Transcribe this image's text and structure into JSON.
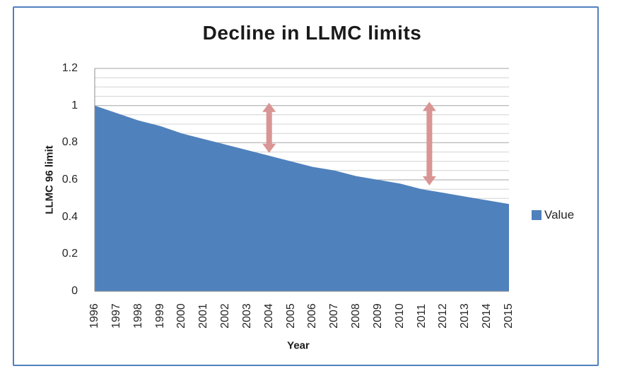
{
  "frame": {
    "border_color": "#4f81bd"
  },
  "chart_data": {
    "type": "area",
    "title": "Decline in LLMC limits",
    "xlabel": "Year",
    "ylabel": "LLMC 96 limit",
    "legend": [
      {
        "label": "Value",
        "color": "#4f81bd"
      }
    ],
    "legend_position": "right",
    "categories": [
      1996,
      1997,
      1998,
      1999,
      2000,
      2001,
      2002,
      2003,
      2004,
      2005,
      2006,
      2007,
      2008,
      2009,
      2010,
      2011,
      2012,
      2013,
      2014,
      2015
    ],
    "values": [
      1.0,
      0.96,
      0.92,
      0.89,
      0.85,
      0.82,
      0.79,
      0.76,
      0.73,
      0.7,
      0.67,
      0.65,
      0.62,
      0.6,
      0.58,
      0.55,
      0.53,
      0.51,
      0.49,
      0.47
    ],
    "series_name": "Value",
    "area_color": "#4f81bd",
    "ylim": [
      0,
      1.2
    ],
    "y_ticks": [
      0,
      0.2,
      0.4,
      0.6,
      0.8,
      1,
      1.2
    ],
    "y_tick_labels": [
      "0",
      "0.2",
      "0.4",
      "0.6",
      "0.8",
      "1",
      "1.2"
    ],
    "gridline_step": 0.05,
    "grid_minor_color": "#d4d4d4",
    "grid_major_color": "#a6a6a6",
    "axis_line_color": "#8c8c8c",
    "annotations": [
      {
        "type": "double-arrow-vertical",
        "x_year": 2004.0,
        "y_bottom": 0.745,
        "y_top": 1.015,
        "color": "#d99594"
      },
      {
        "type": "double-arrow-vertical",
        "x_year": 2011.35,
        "y_bottom": 0.57,
        "y_top": 1.02,
        "color": "#d99594"
      }
    ]
  }
}
